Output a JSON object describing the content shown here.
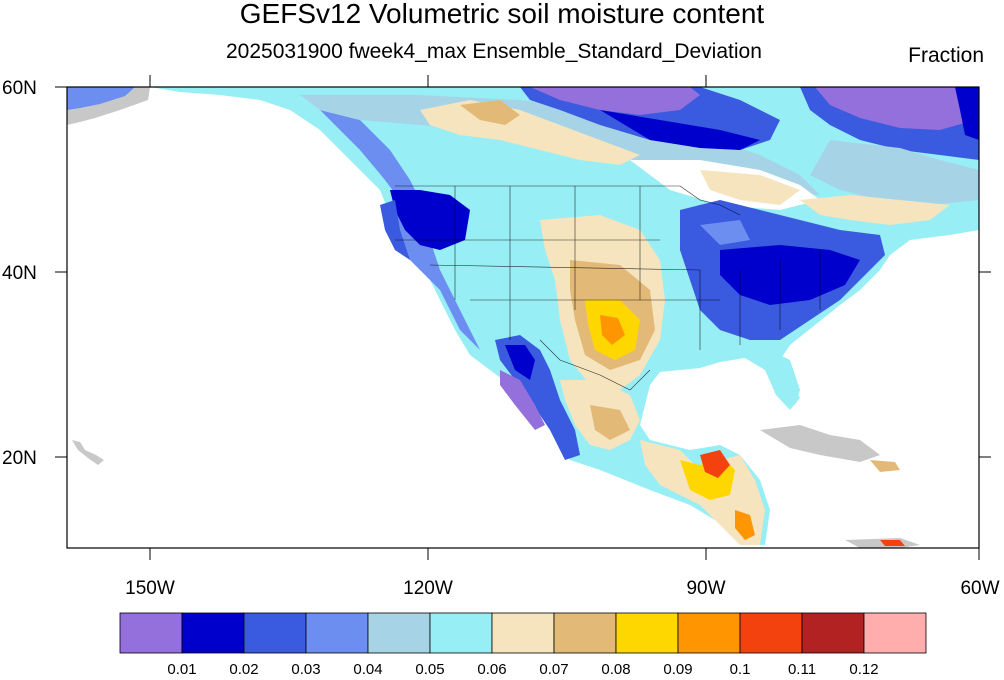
{
  "header": {
    "title": "GEFSv12 Volumetric soil moisture content",
    "subtitle": "2025031900 fweek4_max Ensemble_Standard_Deviation",
    "units": "Fraction"
  },
  "map": {
    "lat_labels": [
      "60N",
      "40N",
      "20N"
    ],
    "lon_labels": [
      "150W",
      "120W",
      "90W",
      "60W"
    ],
    "colors": {
      "land_gray": "#c8c8c8",
      "ocean": "#ffffff",
      "border": "#000000"
    }
  },
  "colorbar": {
    "colors": [
      "#9370db",
      "#0000cd",
      "#3a5ae0",
      "#6b8ef0",
      "#a6d4e6",
      "#98eef5",
      "#f5e4bd",
      "#e2b977",
      "#ffd700",
      "#ff9500",
      "#f4420f",
      "#b22222",
      "#ffadad"
    ],
    "labels": [
      "0.01",
      "0.02",
      "0.03",
      "0.04",
      "0.05",
      "0.06",
      "0.07",
      "0.08",
      "0.09",
      "0.1",
      "0.11",
      "0.12"
    ]
  }
}
